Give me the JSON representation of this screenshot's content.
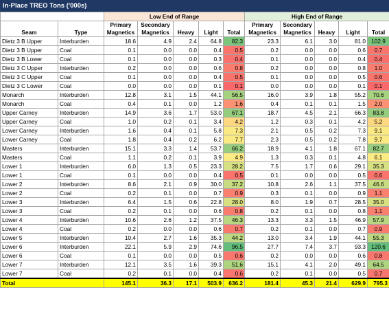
{
  "title": "In-Place TREO Tons ('000s)",
  "groups": {
    "low": "Low End of Range",
    "high": "High End of Range"
  },
  "headers": {
    "seam": "Seam",
    "type": "Type",
    "primary_top": "Primary",
    "primary_bottom": "Magnetics",
    "secondary_top": "Secondary",
    "secondary_bottom": "Magnetics",
    "heavy": "Heavy",
    "light": "Light",
    "total": "Total"
  },
  "colors": {
    "header_bg": "#1f3864",
    "low_group_bg": "#fbe5d6",
    "high_group_bg": "#e2efda",
    "total_row_bg": "#ffff00",
    "scale_red": "#f8696b",
    "scale_yellow": "#ffeb84",
    "scale_green": "#63be7b"
  },
  "rows": [
    {
      "seam": "Dietz 3 B Upper",
      "type": "Interburden",
      "low": [
        "18.6",
        "4.9",
        "2.4",
        "64.8",
        "82.3"
      ],
      "high": [
        "23.3",
        "6.1",
        "3.0",
        "81.0",
        "102.9"
      ]
    },
    {
      "seam": "Dietz 3 B Upper",
      "type": "Coal",
      "low": [
        "0.1",
        "0.0",
        "0.0",
        "0.4",
        "0.5"
      ],
      "high": [
        "0.2",
        "0.0",
        "0.0",
        "0.6",
        "0.7"
      ]
    },
    {
      "seam": "Dietz 3 B Lower",
      "type": "Coal",
      "low": [
        "0.1",
        "0.0",
        "0.0",
        "0.3",
        "0.4"
      ],
      "high": [
        "0.1",
        "0.0",
        "0.0",
        "0.4",
        "0.4"
      ]
    },
    {
      "seam": "Dietz 3 C Upper",
      "type": "Interburden",
      "low": [
        "0.2",
        "0.0",
        "0.0",
        "0.6",
        "0.8"
      ],
      "high": [
        "0.2",
        "0.0",
        "0.0",
        "0.8",
        "1.0"
      ]
    },
    {
      "seam": "Dietz 3 C Upper",
      "type": "Coal",
      "low": [
        "0.1",
        "0.0",
        "0.0",
        "0.4",
        "0.5"
      ],
      "high": [
        "0.1",
        "0.0",
        "0.0",
        "0.5",
        "0.6"
      ]
    },
    {
      "seam": "Dietz 3 C Lower",
      "type": "Coal",
      "low": [
        "0.0",
        "0.0",
        "0.0",
        "0.1",
        "0.1"
      ],
      "high": [
        "0.0",
        "0.0",
        "0.0",
        "0.1",
        "0.1"
      ]
    },
    {
      "seam": "Monarch",
      "type": "Interburden",
      "low": [
        "12.8",
        "3.1",
        "1.5",
        "44.1",
        "56.5"
      ],
      "high": [
        "16.0",
        "3.9",
        "1.8",
        "55.2",
        "70.6"
      ]
    },
    {
      "seam": "Monarch",
      "type": "Coal",
      "low": [
        "0.4",
        "0.1",
        "0.0",
        "1.2",
        "1.6"
      ],
      "high": [
        "0.4",
        "0.1",
        "0.1",
        "1.5",
        "2.0"
      ]
    },
    {
      "seam": "Upper Carney",
      "type": "Interburden",
      "low": [
        "14.9",
        "3.6",
        "1.7",
        "53.0",
        "67.1"
      ],
      "high": [
        "18.7",
        "4.5",
        "2.1",
        "66.3",
        "83.8"
      ]
    },
    {
      "seam": "Upper Carney",
      "type": "Coal",
      "low": [
        "1.0",
        "0.2",
        "0.1",
        "3.4",
        "4.2"
      ],
      "high": [
        "1.2",
        "0.3",
        "0.1",
        "4.2",
        "5.2"
      ]
    },
    {
      "seam": "Lower Carney",
      "type": "Interburden",
      "low": [
        "1.6",
        "0.4",
        "0.1",
        "5.8",
        "7.3"
      ],
      "high": [
        "2.1",
        "0.5",
        "0.2",
        "7.3",
        "9.1"
      ]
    },
    {
      "seam": "Lower Carney",
      "type": "Coal",
      "low": [
        "1.8",
        "0.4",
        "0.2",
        "6.2",
        "7.7"
      ],
      "high": [
        "2.3",
        "0.5",
        "0.2",
        "7.8",
        "9.7"
      ]
    },
    {
      "seam": "Masters",
      "type": "Interburden",
      "low": [
        "15.1",
        "3.3",
        "1.4",
        "53.7",
        "66.2"
      ],
      "high": [
        "18.9",
        "4.1",
        "1.8",
        "67.1",
        "82.7"
      ]
    },
    {
      "seam": "Masters",
      "type": "Coal",
      "low": [
        "1.1",
        "0.2",
        "0.1",
        "3.9",
        "4.9"
      ],
      "high": [
        "1.3",
        "0.3",
        "0.1",
        "4.8",
        "6.1"
      ]
    },
    {
      "seam": "Lower 1",
      "type": "Interburden",
      "low": [
        "6.0",
        "1.3",
        "0.5",
        "23.3",
        "28.2"
      ],
      "high": [
        "7.5",
        "1.7",
        "0.6",
        "29.1",
        "35.3"
      ]
    },
    {
      "seam": "Lower 1",
      "type": "Coal",
      "low": [
        "0.1",
        "0.0",
        "0.0",
        "0.4",
        "0.5"
      ],
      "high": [
        "0.1",
        "0.0",
        "0.0",
        "0.5",
        "0.6"
      ]
    },
    {
      "seam": "Lower 2",
      "type": "Interburden",
      "low": [
        "8.6",
        "2.1",
        "0.9",
        "30.0",
        "37.2"
      ],
      "high": [
        "10.8",
        "2.6",
        "1.1",
        "37.5",
        "46.6"
      ]
    },
    {
      "seam": "Lower 2",
      "type": "Coal",
      "low": [
        "0.2",
        "0.1",
        "0.0",
        "0.7",
        "0.9"
      ],
      "high": [
        "0.3",
        "0.1",
        "0.0",
        "0.9",
        "1.1"
      ]
    },
    {
      "seam": "Lower 3",
      "type": "Interburden",
      "low": [
        "6.4",
        "1.5",
        "0.6",
        "22.8",
        "28.0"
      ],
      "high": [
        "8.0",
        "1.9",
        "0.7",
        "28.5",
        "35.0"
      ]
    },
    {
      "seam": "Lower 3",
      "type": "Coal",
      "low": [
        "0.2",
        "0.1",
        "0.0",
        "0.6",
        "0.8"
      ],
      "high": [
        "0.2",
        "0.1",
        "0.0",
        "0.8",
        "1.1"
      ]
    },
    {
      "seam": "Lower 4",
      "type": "Interburden",
      "low": [
        "10.6",
        "2.6",
        "1.2",
        "37.5",
        "46.3"
      ],
      "high": [
        "13.3",
        "3.3",
        "1.5",
        "46.9",
        "57.9"
      ]
    },
    {
      "seam": "Lower 4",
      "type": "Coal",
      "low": [
        "0.2",
        "0.0",
        "0.0",
        "0.6",
        "0.7"
      ],
      "high": [
        "0.2",
        "0.1",
        "0.0",
        "0.7",
        "0.9"
      ]
    },
    {
      "seam": "Lower 5",
      "type": "Interburden",
      "low": [
        "10.4",
        "2.7",
        "1.6",
        "35.3",
        "44.2"
      ],
      "high": [
        "13.0",
        "3.4",
        "1.9",
        "44.1",
        "55.3"
      ]
    },
    {
      "seam": "Lower 6",
      "type": "Interburden",
      "low": [
        "22.1",
        "5.9",
        "2.9",
        "74.6",
        "96.5"
      ],
      "high": [
        "27.7",
        "7.4",
        "3.7",
        "93.3",
        "120.6"
      ]
    },
    {
      "seam": "Lower 6",
      "type": "Coal",
      "low": [
        "0.1",
        "0.0",
        "0.0",
        "0.5",
        "0.6"
      ],
      "high": [
        "0.2",
        "0.0",
        "0.0",
        "0.6",
        "0.8"
      ]
    },
    {
      "seam": "Lower 7",
      "type": "Interburden",
      "low": [
        "12.1",
        "3.5",
        "1.6",
        "39.3",
        "51.6"
      ],
      "high": [
        "15.1",
        "4.1",
        "2.0",
        "49.1",
        "64.5"
      ]
    },
    {
      "seam": "Lower 7",
      "type": "Coal",
      "low": [
        "0.2",
        "0.1",
        "0.0",
        "0.4",
        "0.6"
      ],
      "high": [
        "0.2",
        "0.1",
        "0.0",
        "0.5",
        "0.7"
      ]
    }
  ],
  "total": {
    "label": "Total",
    "low": [
      "145.1",
      "36.3",
      "17.1",
      "503.9",
      "636.2"
    ],
    "high": [
      "181.4",
      "45.3",
      "21.4",
      "629.9",
      "795.3"
    ]
  }
}
